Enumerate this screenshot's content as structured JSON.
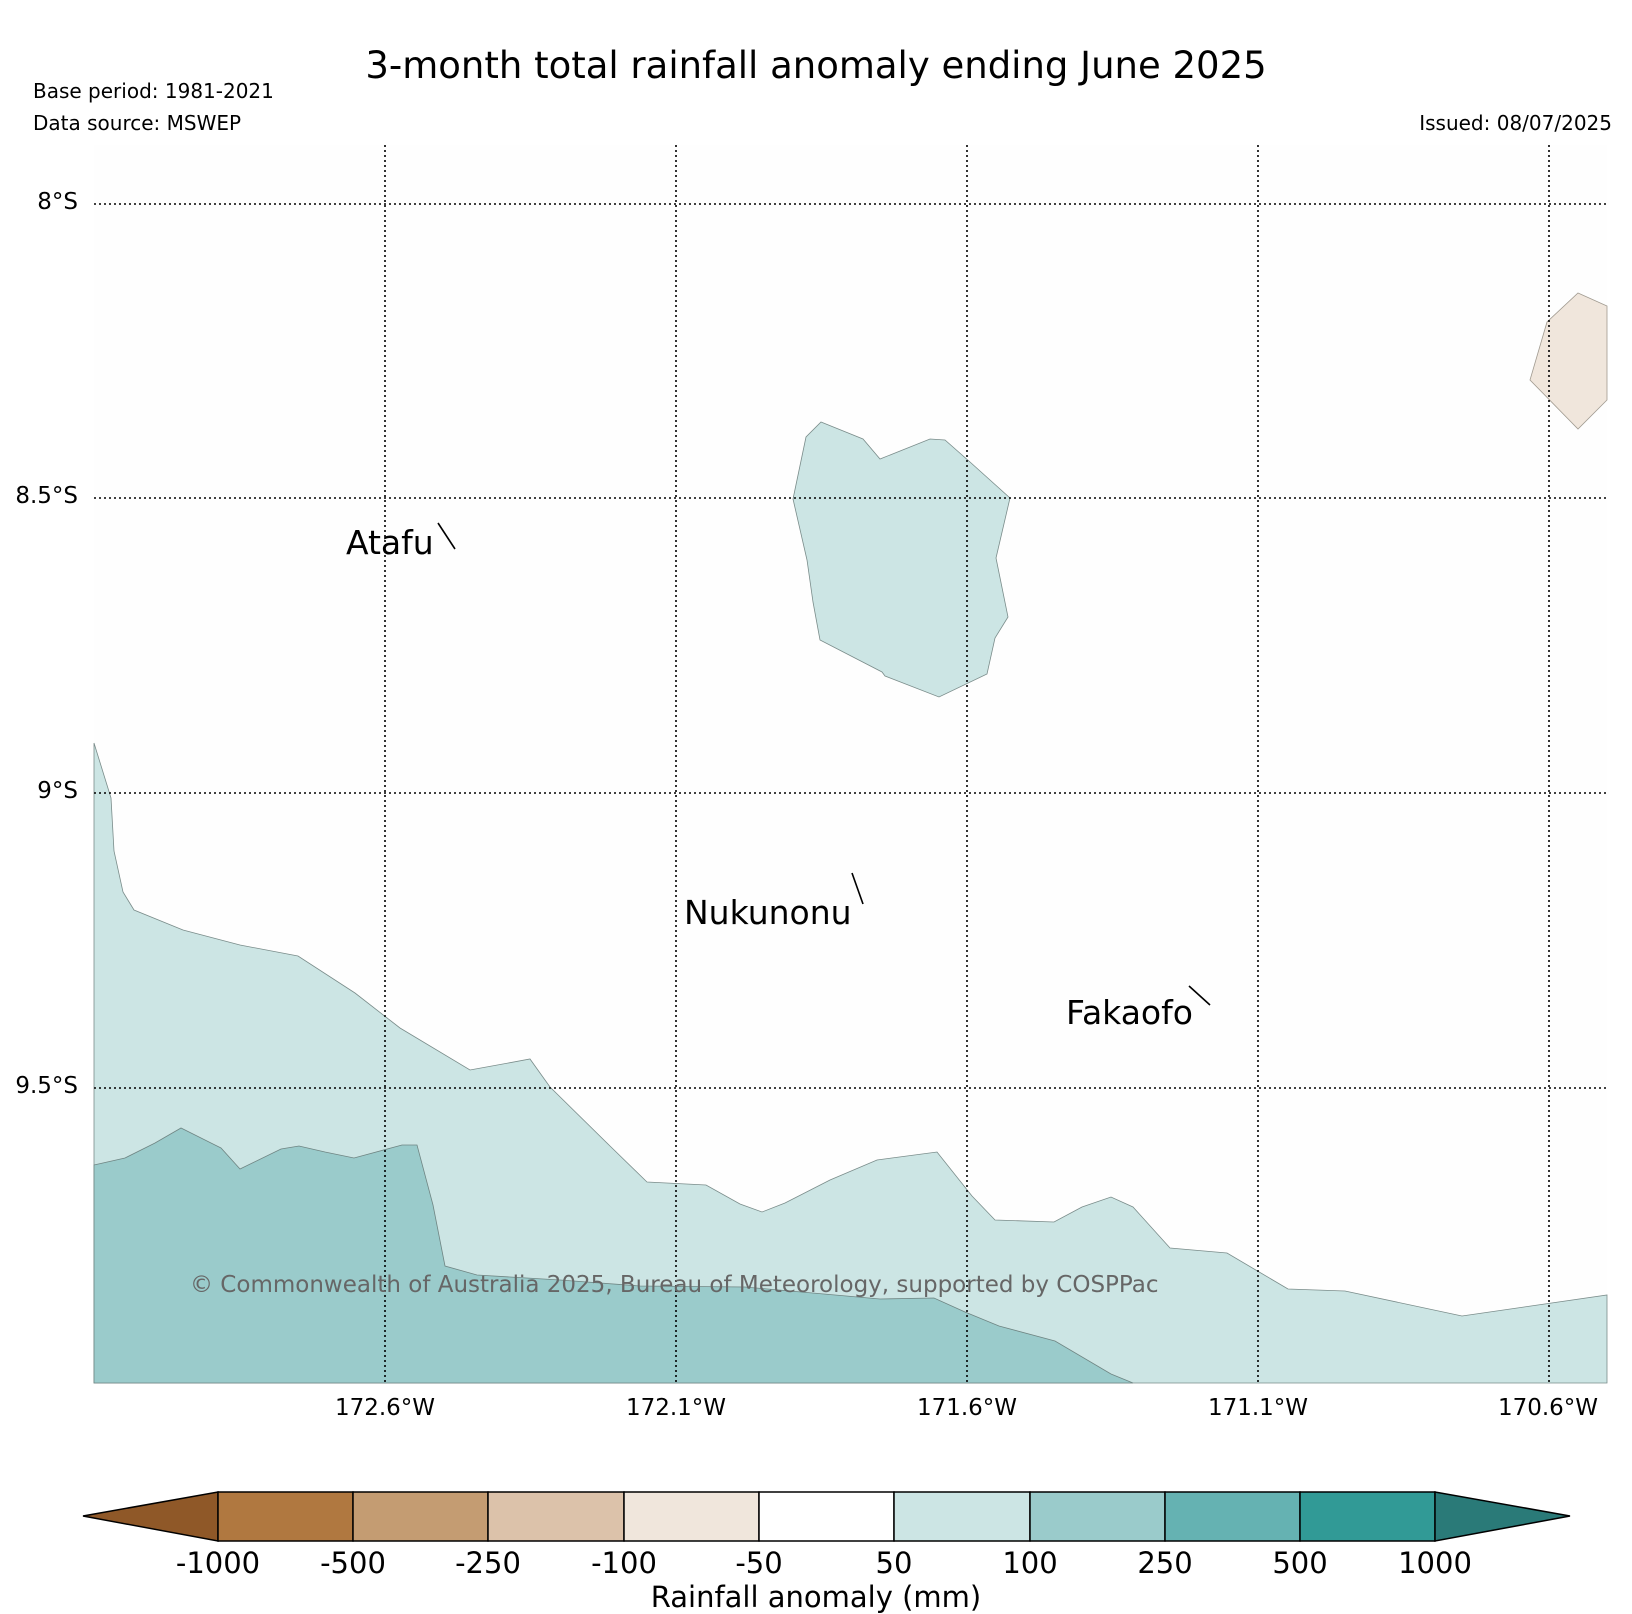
{
  "header": {
    "title": "3-month total rainfall anomaly ending June 2025",
    "base_period": "Base period: 1981-2021",
    "data_source": "Data source: MSWEP",
    "issued": "Issued: 08/07/2025"
  },
  "map": {
    "lat_labels": [
      "8°S",
      "8.5°S",
      "9°S",
      "9.5°S"
    ],
    "lon_labels": [
      "172.6°W",
      "172.1°W",
      "171.6°W",
      "171.1°W",
      "170.6°W"
    ],
    "places": {
      "atafu": "Atafu",
      "nukunonu": "Nukunonu",
      "fakaofo": "Fakaofo"
    },
    "copyright": "© Commonwealth of Australia 2025, Bureau of Meteorology, supported by COSPPac",
    "fill_colors": {
      "anomaly_50_100": "#cce5e4",
      "anomaly_100_250": "#9acbcb",
      "anomaly_neg100_neg50": "#f0e6dc"
    }
  },
  "colorbar": {
    "label": "Rainfall anomaly (mm)",
    "ticks": [
      "-1000",
      "-500",
      "-250",
      "-100",
      "-50",
      "50",
      "100",
      "250",
      "500",
      "1000"
    ],
    "colors": [
      "#8f5828",
      "#b07840",
      "#c49c72",
      "#dcc2aa",
      "#f0e6dc",
      "#ffffff",
      "#cce5e4",
      "#9acbcb",
      "#65b2b2",
      "#319a96",
      "#2a7a78"
    ]
  }
}
